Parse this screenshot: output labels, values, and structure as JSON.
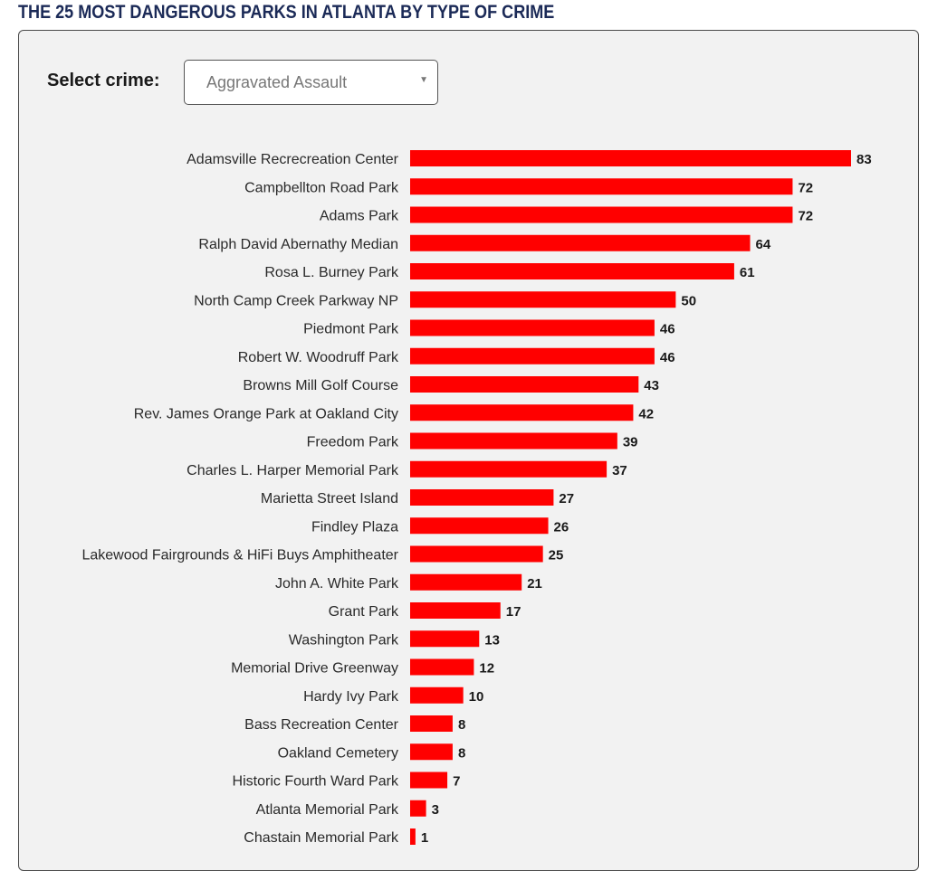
{
  "page": {
    "title": "THE 25 MOST DANGEROUS PARKS IN ATLANTA BY TYPE OF CRIME"
  },
  "controls": {
    "select_label": "Select crime:",
    "selected_crime": "Aggravated Assault",
    "dropdown_icon": "chevron-down-icon"
  },
  "colors": {
    "bar": "#ff0000",
    "title": "#1b2a57",
    "panel_background": "#f2f2f2"
  },
  "chart_data": {
    "type": "bar",
    "orientation": "horizontal",
    "title": "",
    "xlabel": "",
    "ylabel": "",
    "categories": [
      "Adamsville Recrecreation Center",
      "Campbellton Road Park",
      "Adams Park",
      "Ralph David Abernathy Median",
      "Rosa L. Burney Park",
      "North Camp Creek Parkway NP",
      "Piedmont Park",
      "Robert W. Woodruff Park",
      "Browns Mill Golf Course",
      "Rev. James Orange Park at Oakland City",
      "Freedom Park",
      "Charles L. Harper Memorial Park",
      "Marietta Street Island",
      "Findley Plaza",
      "Lakewood Fairgrounds & HiFi Buys Amphitheater",
      "John A. White Park",
      "Grant Park",
      "Washington Park",
      "Memorial Drive Greenway",
      "Hardy Ivy Park",
      "Bass Recreation Center",
      "Oakland Cemetery",
      "Historic Fourth Ward Park",
      "Atlanta Memorial Park",
      "Chastain Memorial Park"
    ],
    "values": [
      83,
      72,
      72,
      64,
      61,
      50,
      46,
      46,
      43,
      42,
      39,
      37,
      27,
      26,
      25,
      21,
      17,
      13,
      12,
      10,
      8,
      8,
      7,
      3,
      1
    ],
    "xlim": [
      0,
      83
    ],
    "grid": false,
    "legend": "none"
  }
}
